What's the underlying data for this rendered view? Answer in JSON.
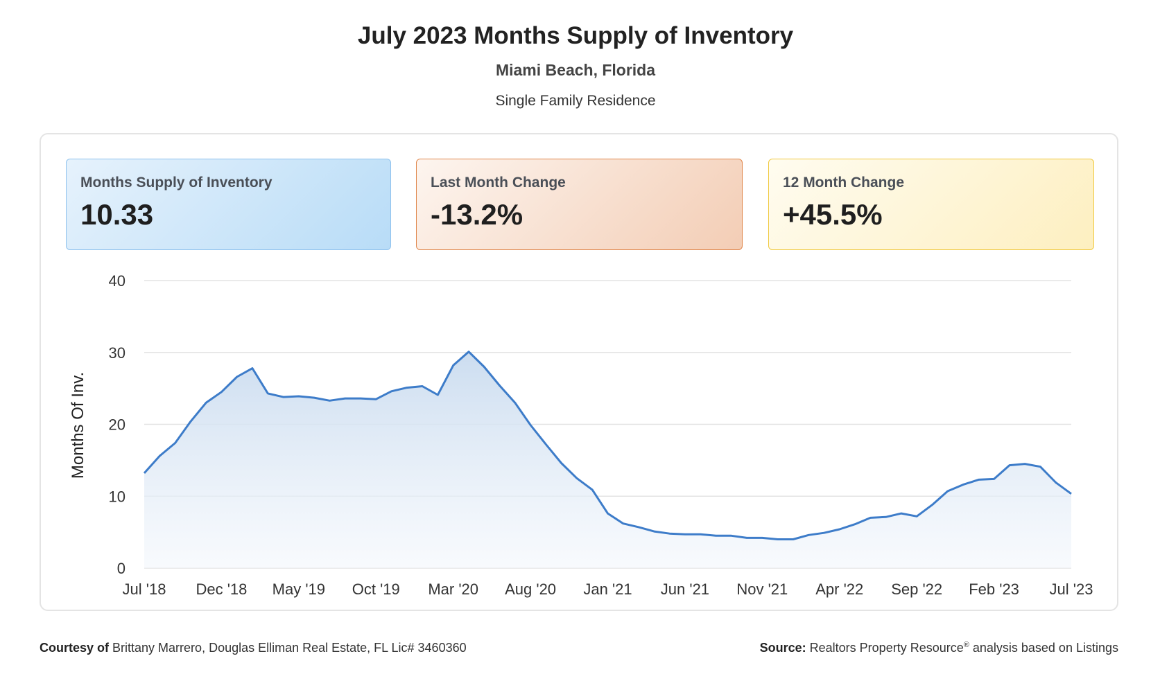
{
  "header": {
    "title": "July 2023 Months Supply of Inventory",
    "location": "Miami Beach, Florida",
    "property_type": "Single Family Residence"
  },
  "cards": [
    {
      "label": "Months Supply of Inventory",
      "value": "10.33",
      "accent": "#8fc2ee"
    },
    {
      "label": "Last Month Change",
      "value": "-13.2%",
      "accent": "#e0864b"
    },
    {
      "label": "12 Month Change",
      "value": "+45.5%",
      "accent": "#f0c93f"
    }
  ],
  "chart_data": {
    "type": "area",
    "title": "",
    "xlabel": "",
    "ylabel": "Months Of Inv.",
    "ylim": [
      0,
      40
    ],
    "yticks": [
      "0",
      "10",
      "20",
      "30",
      "40"
    ],
    "xtick_labels": [
      "Jul '18",
      "Dec '18",
      "May '19",
      "Oct '19",
      "Mar '20",
      "Aug '20",
      "Jan '21",
      "Jun '21",
      "Nov '21",
      "Apr '22",
      "Sep '22",
      "Feb '23",
      "Jul '23"
    ],
    "grid": true,
    "line_color": "#3d7cc9",
    "series": [
      {
        "values": [
          13.2,
          15.6,
          17.4,
          20.4,
          23.0,
          24.5,
          26.6,
          27.8,
          24.3,
          23.8,
          23.9,
          23.7,
          23.3,
          23.6,
          23.6,
          23.5,
          24.6,
          25.1,
          25.3,
          24.1,
          28.2,
          30.1,
          28.0,
          25.4,
          23.0,
          19.9,
          17.2,
          14.6,
          12.5,
          10.9,
          7.6,
          6.2,
          5.7,
          5.1,
          4.8,
          4.7,
          4.7,
          4.5,
          4.5,
          4.2,
          4.2,
          4.0,
          4.0,
          4.6,
          4.9,
          5.4,
          6.1,
          7.0,
          7.1,
          7.6,
          7.2,
          8.8,
          10.7,
          11.6,
          12.3,
          12.4,
          14.3,
          14.5,
          14.1,
          11.9,
          10.33
        ]
      }
    ]
  },
  "footer": {
    "courtesy_label": "Courtesy of",
    "courtesy_text": "Brittany Marrero, Douglas Elliman Real Estate, FL Lic# 3460360",
    "source_label": "Source:",
    "source_text_1": "Realtors Property Resource",
    "source_sup": "®",
    "source_text_2": "analysis based on Listings"
  }
}
